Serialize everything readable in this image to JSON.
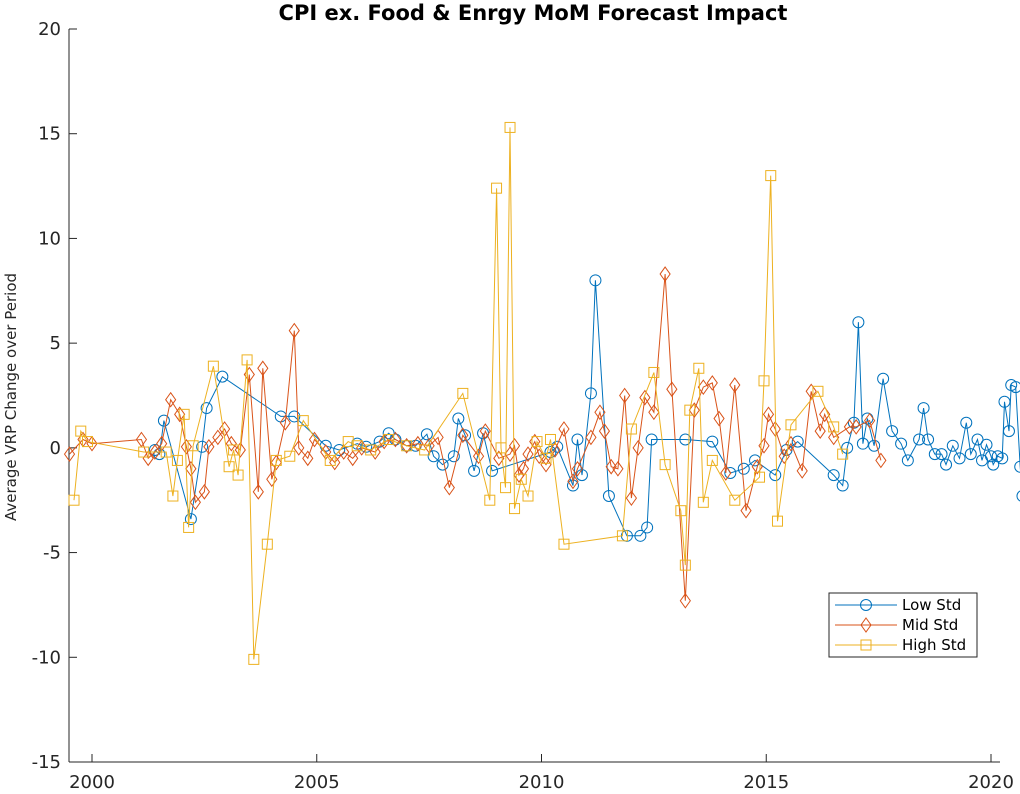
{
  "chart_data": {
    "type": "line",
    "title": "CPI ex. Food & Enrgy MoM Forecast Impact",
    "xlabel": "",
    "ylabel": "Average VRP Change over Period",
    "xlim": [
      1999.45,
      2020.2
    ],
    "ylim": [
      -15,
      20
    ],
    "xticks": [
      2000,
      2005,
      2010,
      2015,
      2020
    ],
    "yticks": [
      -15,
      -10,
      -5,
      0,
      5,
      10,
      15,
      20
    ],
    "grid": false,
    "legend_position": "lower-right",
    "series": [
      {
        "name": "Low Std",
        "color": "#0072BD",
        "marker": "circle",
        "points": [
          [
            2001.4,
            -0.1
          ],
          [
            2001.5,
            -0.3
          ],
          [
            2001.6,
            1.3
          ],
          [
            2002.2,
            -3.4
          ],
          [
            2002.45,
            0.05
          ],
          [
            2002.55,
            1.9
          ],
          [
            2002.9,
            3.4
          ],
          [
            2004.2,
            1.5
          ],
          [
            2004.5,
            1.5
          ],
          [
            2005.2,
            0.1
          ],
          [
            2005.5,
            -0.1
          ],
          [
            2005.9,
            0.2
          ],
          [
            2006.1,
            0.05
          ],
          [
            2006.4,
            0.3
          ],
          [
            2006.6,
            0.7
          ],
          [
            2006.75,
            0.4
          ],
          [
            2007.0,
            0.1
          ],
          [
            2007.2,
            0.1
          ],
          [
            2007.45,
            0.65
          ],
          [
            2007.6,
            -0.4
          ],
          [
            2007.8,
            -0.8
          ],
          [
            2008.05,
            -0.4
          ],
          [
            2008.15,
            1.4
          ],
          [
            2008.3,
            0.6
          ],
          [
            2008.5,
            -1.1
          ],
          [
            2008.7,
            0.7
          ],
          [
            2008.9,
            -1.1
          ],
          [
            2010.2,
            -0.2
          ],
          [
            2010.35,
            0.05
          ],
          [
            2010.7,
            -1.8
          ],
          [
            2010.8,
            0.4
          ],
          [
            2010.9,
            -1.3
          ],
          [
            2011.1,
            2.6
          ],
          [
            2011.2,
            8.0
          ],
          [
            2011.5,
            -2.3
          ],
          [
            2011.9,
            -4.2
          ],
          [
            2012.2,
            -4.2
          ],
          [
            2012.35,
            -3.8
          ],
          [
            2012.45,
            0.4
          ],
          [
            2013.2,
            0.4
          ],
          [
            2013.8,
            0.3
          ],
          [
            2014.2,
            -1.2
          ],
          [
            2014.5,
            -1.0
          ],
          [
            2014.75,
            -0.6
          ],
          [
            2015.2,
            -1.3
          ],
          [
            2015.45,
            -0.1
          ],
          [
            2015.7,
            0.3
          ],
          [
            2016.5,
            -1.3
          ],
          [
            2016.7,
            -1.8
          ],
          [
            2016.8,
            0.0
          ],
          [
            2016.95,
            1.2
          ],
          [
            2017.05,
            6.0
          ],
          [
            2017.15,
            0.2
          ],
          [
            2017.25,
            1.4
          ],
          [
            2017.4,
            0.1
          ],
          [
            2017.6,
            3.3
          ],
          [
            2017.8,
            0.8
          ],
          [
            2018.0,
            0.2
          ],
          [
            2018.15,
            -0.6
          ],
          [
            2018.4,
            0.4
          ],
          [
            2018.5,
            1.9
          ],
          [
            2018.6,
            0.4
          ],
          [
            2018.75,
            -0.3
          ],
          [
            2018.9,
            -0.3
          ],
          [
            2019.0,
            -0.8
          ],
          [
            2019.15,
            0.1
          ],
          [
            2019.3,
            -0.5
          ],
          [
            2019.45,
            1.2
          ],
          [
            2019.55,
            -0.3
          ],
          [
            2019.7,
            0.4
          ],
          [
            2019.8,
            -0.6
          ],
          [
            2019.9,
            0.15
          ],
          [
            2020.0,
            -0.4
          ],
          [
            2020.05,
            -0.8
          ],
          [
            2020.15,
            -0.4
          ],
          [
            2020.25,
            -0.5
          ],
          [
            2020.3,
            2.2
          ],
          [
            2020.4,
            0.8
          ],
          [
            2020.45,
            3.0
          ],
          [
            2020.55,
            2.9
          ],
          [
            2020.65,
            -0.9
          ],
          [
            2020.7,
            -2.3
          ],
          [
            2020.8,
            -0.7
          ],
          [
            2020.9,
            -0.7
          ]
        ]
      },
      {
        "name": "Mid Std",
        "color": "#D95319",
        "marker": "diamond",
        "points": [
          [
            1999.5,
            -0.3
          ],
          [
            1999.8,
            0.4
          ],
          [
            2000.0,
            0.2
          ],
          [
            2001.1,
            0.4
          ],
          [
            2001.25,
            -0.5
          ],
          [
            2001.4,
            -0.2
          ],
          [
            2001.55,
            0.2
          ],
          [
            2001.75,
            2.3
          ],
          [
            2001.95,
            1.6
          ],
          [
            2002.1,
            0.05
          ],
          [
            2002.2,
            -1.0
          ],
          [
            2002.3,
            -2.6
          ],
          [
            2002.5,
            -2.1
          ],
          [
            2002.6,
            0.05
          ],
          [
            2002.8,
            0.5
          ],
          [
            2002.95,
            0.9
          ],
          [
            2003.1,
            0.2
          ],
          [
            2003.3,
            -0.1
          ],
          [
            2003.5,
            3.5
          ],
          [
            2003.7,
            -2.1
          ],
          [
            2003.8,
            3.8
          ],
          [
            2004.0,
            -1.5
          ],
          [
            2004.1,
            -0.7
          ],
          [
            2004.3,
            1.2
          ],
          [
            2004.5,
            5.6
          ],
          [
            2004.6,
            0.0
          ],
          [
            2004.8,
            -0.5
          ],
          [
            2004.95,
            0.4
          ],
          [
            2005.2,
            -0.2
          ],
          [
            2005.4,
            -0.7
          ],
          [
            2005.6,
            -0.2
          ],
          [
            2005.8,
            -0.5
          ],
          [
            2006.0,
            0.0
          ],
          [
            2006.3,
            -0.2
          ],
          [
            2006.5,
            0.3
          ],
          [
            2006.75,
            0.4
          ],
          [
            2007.0,
            0.1
          ],
          [
            2007.25,
            0.2
          ],
          [
            2007.5,
            0.1
          ],
          [
            2007.7,
            0.5
          ],
          [
            2007.95,
            -1.9
          ],
          [
            2008.25,
            0.6
          ],
          [
            2008.6,
            -0.4
          ],
          [
            2008.75,
            0.8
          ],
          [
            2009.05,
            -0.5
          ],
          [
            2009.3,
            -0.3
          ],
          [
            2009.4,
            0.1
          ],
          [
            2009.5,
            -1.3
          ],
          [
            2009.6,
            -1.0
          ],
          [
            2009.7,
            -0.3
          ],
          [
            2009.85,
            0.3
          ],
          [
            2009.95,
            -0.4
          ],
          [
            2010.1,
            -0.8
          ],
          [
            2010.3,
            -0.1
          ],
          [
            2010.5,
            0.9
          ],
          [
            2010.7,
            -1.6
          ],
          [
            2010.8,
            -1.0
          ],
          [
            2011.1,
            0.5
          ],
          [
            2011.3,
            1.7
          ],
          [
            2011.4,
            0.8
          ],
          [
            2011.55,
            -0.9
          ],
          [
            2011.7,
            -1.0
          ],
          [
            2011.85,
            2.5
          ],
          [
            2012.0,
            -2.4
          ],
          [
            2012.15,
            0.0
          ],
          [
            2012.3,
            2.4
          ],
          [
            2012.5,
            1.7
          ],
          [
            2012.75,
            8.3
          ],
          [
            2012.9,
            2.8
          ],
          [
            2013.2,
            -7.3
          ],
          [
            2013.4,
            1.8
          ],
          [
            2013.6,
            2.9
          ],
          [
            2013.8,
            3.1
          ],
          [
            2013.95,
            1.4
          ],
          [
            2014.1,
            -1.2
          ],
          [
            2014.3,
            3.0
          ],
          [
            2014.55,
            -3.0
          ],
          [
            2014.8,
            -0.9
          ],
          [
            2014.95,
            0.1
          ],
          [
            2015.05,
            1.6
          ],
          [
            2015.2,
            0.9
          ],
          [
            2015.4,
            -0.4
          ],
          [
            2015.55,
            0.2
          ],
          [
            2015.8,
            -1.1
          ],
          [
            2016.0,
            2.7
          ],
          [
            2016.2,
            0.8
          ],
          [
            2016.3,
            1.6
          ],
          [
            2016.5,
            0.5
          ],
          [
            2016.85,
            1.0
          ],
          [
            2017.0,
            1.0
          ],
          [
            2017.3,
            1.3
          ],
          [
            2017.55,
            -0.6
          ]
        ]
      },
      {
        "name": "High Std",
        "color": "#EDB120",
        "marker": "square",
        "points": [
          [
            1999.6,
            -2.5
          ],
          [
            1999.75,
            0.8
          ],
          [
            1999.9,
            0.3
          ],
          [
            2001.15,
            -0.2
          ],
          [
            2001.65,
            -0.2
          ],
          [
            2001.8,
            -2.3
          ],
          [
            2001.9,
            -0.6
          ],
          [
            2002.05,
            1.6
          ],
          [
            2002.15,
            -3.8
          ],
          [
            2002.25,
            0.1
          ],
          [
            2002.7,
            3.9
          ],
          [
            2003.05,
            -0.9
          ],
          [
            2003.15,
            -0.1
          ],
          [
            2003.25,
            -1.3
          ],
          [
            2003.45,
            4.2
          ],
          [
            2003.6,
            -10.1
          ],
          [
            2003.9,
            -4.6
          ],
          [
            2004.1,
            -0.6
          ],
          [
            2004.4,
            -0.4
          ],
          [
            2004.7,
            1.3
          ],
          [
            2005.3,
            -0.6
          ],
          [
            2005.7,
            0.3
          ],
          [
            2005.9,
            0.1
          ],
          [
            2006.2,
            -0.1
          ],
          [
            2006.6,
            0.4
          ],
          [
            2007.0,
            0.1
          ],
          [
            2007.4,
            -0.1
          ],
          [
            2008.25,
            2.6
          ],
          [
            2008.85,
            -2.5
          ],
          [
            2009.0,
            12.4
          ],
          [
            2009.1,
            0.0
          ],
          [
            2009.2,
            -1.9
          ],
          [
            2009.3,
            15.3
          ],
          [
            2009.4,
            -2.9
          ],
          [
            2009.55,
            -1.5
          ],
          [
            2009.7,
            -2.3
          ],
          [
            2009.9,
            0.3
          ],
          [
            2010.1,
            -0.5
          ],
          [
            2010.2,
            0.4
          ],
          [
            2010.5,
            -4.6
          ],
          [
            2011.8,
            -4.2
          ],
          [
            2012.0,
            0.9
          ],
          [
            2012.5,
            3.6
          ],
          [
            2012.75,
            -0.8
          ],
          [
            2013.1,
            -3.0
          ],
          [
            2013.2,
            -5.6
          ],
          [
            2013.3,
            1.8
          ],
          [
            2013.5,
            3.8
          ],
          [
            2013.6,
            -2.6
          ],
          [
            2013.8,
            -0.6
          ],
          [
            2014.3,
            -2.5
          ],
          [
            2014.85,
            -1.4
          ],
          [
            2014.95,
            3.2
          ],
          [
            2015.1,
            13.0
          ],
          [
            2015.25,
            -3.5
          ],
          [
            2015.55,
            1.1
          ],
          [
            2016.15,
            2.7
          ],
          [
            2016.5,
            1.0
          ],
          [
            2016.7,
            -0.3
          ]
        ]
      }
    ]
  }
}
